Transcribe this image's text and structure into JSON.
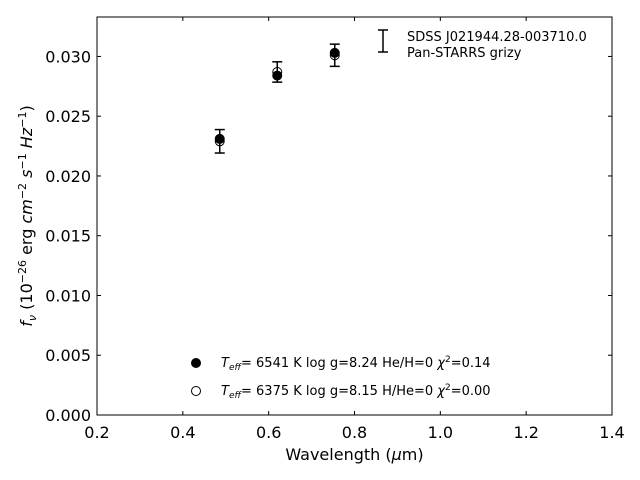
{
  "chart_data": {
    "type": "scatter",
    "xlabel": "Wavelength (μm)",
    "ylabel": "fν (10⁻²⁶ erg cm⁻² s⁻¹ Hz⁻¹)",
    "xlim": [
      0.2,
      1.4
    ],
    "ylim": [
      0.0,
      0.0333
    ],
    "xticks": [
      "0.2",
      "0.4",
      "0.6",
      "0.8",
      "1.0",
      "1.2",
      "1.4"
    ],
    "yticks": [
      "0.000",
      "0.005",
      "0.010",
      "0.015",
      "0.020",
      "0.025",
      "0.030"
    ],
    "grid": false,
    "observed": {
      "labels": [
        "SDSS J021944.28-003710.0",
        "Pan-STARRS grizy"
      ],
      "x": [
        0.486,
        0.62,
        0.754
      ],
      "y": [
        0.0229,
        0.0287,
        0.0301
      ],
      "yerr": [
        0.00098,
        0.00085,
        0.00093
      ]
    },
    "series": [
      {
        "marker": "filled-circle",
        "label": "T_eff=  6541 K  log g=8.24  He/H=0  χ²=0.14",
        "x": [
          0.486,
          0.62,
          0.754
        ],
        "y": [
          0.0231,
          0.0284,
          0.0303
        ]
      },
      {
        "marker": "open-circle",
        "label": "T_eff=  6375 K  log g=8.15  H/He=0  χ²=0.00",
        "x": [
          0.486,
          0.62,
          0.754
        ],
        "y": [
          0.0229,
          0.0287,
          0.0301
        ]
      }
    ],
    "legend_placement": "top-right (observed) and lower-center (models)"
  }
}
